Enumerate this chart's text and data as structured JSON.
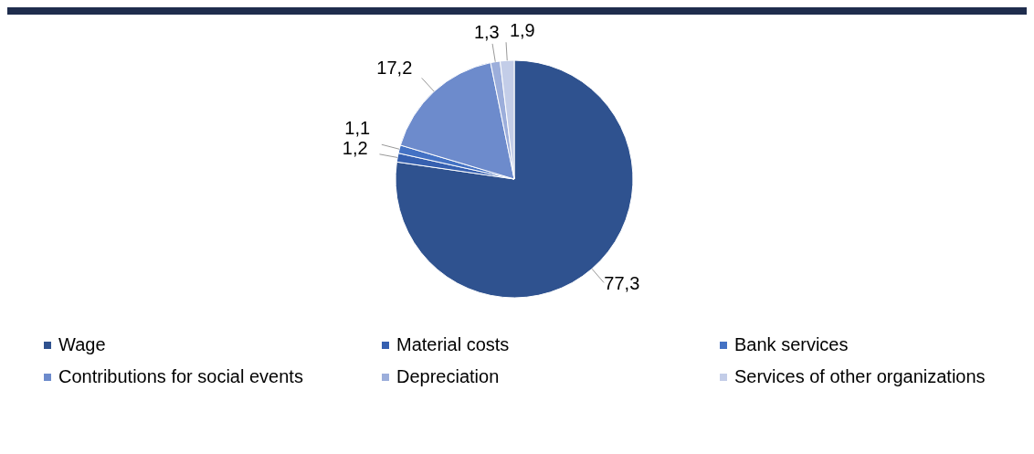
{
  "chart_data": {
    "type": "pie",
    "categories": [
      "Wage",
      "Material costs",
      "Bank services",
      "Contributions for social events",
      "Depreciation",
      "Services of other organizations"
    ],
    "values": [
      77.3,
      1.2,
      1.1,
      17.2,
      1.3,
      1.9
    ],
    "value_labels": [
      "77,3",
      "1,2",
      "1,1",
      "17,2",
      "1,3",
      "1,9"
    ],
    "colors": [
      "#2f528f",
      "#3660b0",
      "#4472c4",
      "#6d8bcc",
      "#9caedb",
      "#c3cde8"
    ],
    "legend": "bottom"
  }
}
